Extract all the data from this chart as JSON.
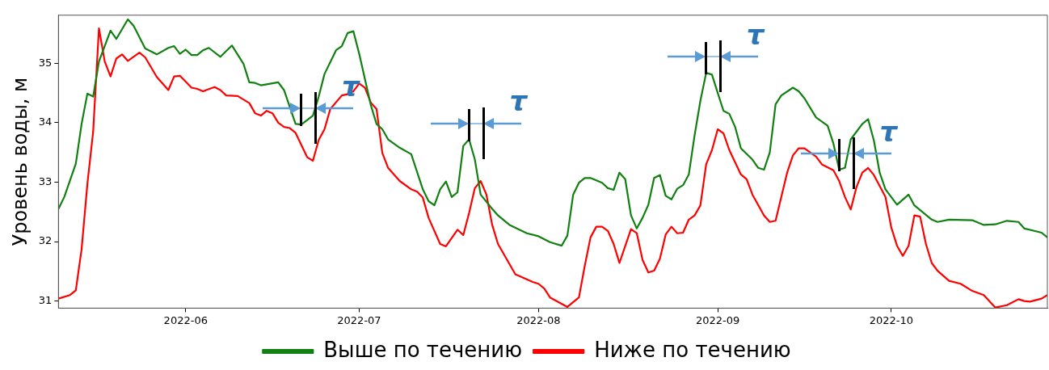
{
  "chart_data": {
    "type": "line",
    "ylabel": "Уровень воды, м",
    "xlim": [
      "2022-05-10",
      "2022-10-28"
    ],
    "xticks": [
      {
        "value": "2022-06-01",
        "label": "2022-06"
      },
      {
        "value": "2022-07-01",
        "label": "2022-07"
      },
      {
        "value": "2022-08-01",
        "label": "2022-08"
      },
      {
        "value": "2022-09-01",
        "label": "2022-09"
      },
      {
        "value": "2022-10-01",
        "label": "2022-10"
      }
    ],
    "ylim": [
      30.88,
      35.81
    ],
    "yticks": [
      31,
      32,
      33,
      34,
      35
    ],
    "legend": "bottom",
    "series": [
      {
        "name": "Выше по течению",
        "color": "#108010",
        "x": [
          "2022-05-10",
          "2022-05-11",
          "2022-05-13",
          "2022-05-14",
          "2022-05-15",
          "2022-05-16",
          "2022-05-17",
          "2022-05-19",
          "2022-05-20",
          "2022-05-22",
          "2022-05-23",
          "2022-05-25",
          "2022-05-27",
          "2022-05-29",
          "2022-05-30",
          "2022-05-31",
          "2022-06-01",
          "2022-06-02",
          "2022-06-03",
          "2022-06-04",
          "2022-06-05",
          "2022-06-07",
          "2022-06-09",
          "2022-06-11",
          "2022-06-12",
          "2022-06-13",
          "2022-06-14",
          "2022-06-17",
          "2022-06-18",
          "2022-06-20",
          "2022-06-21",
          "2022-06-23",
          "2022-06-24",
          "2022-06-25",
          "2022-06-27",
          "2022-06-28",
          "2022-06-29",
          "2022-06-30",
          "2022-07-01",
          "2022-07-03",
          "2022-07-04",
          "2022-07-05",
          "2022-07-06",
          "2022-07-08",
          "2022-07-10",
          "2022-07-12",
          "2022-07-13",
          "2022-07-14",
          "2022-07-15",
          "2022-07-16",
          "2022-07-17",
          "2022-07-18",
          "2022-07-19",
          "2022-07-20",
          "2022-07-21",
          "2022-07-22",
          "2022-07-24",
          "2022-07-25",
          "2022-07-27",
          "2022-07-30",
          "2022-08-01",
          "2022-08-03",
          "2022-08-05",
          "2022-08-06",
          "2022-08-07",
          "2022-08-08",
          "2022-08-09",
          "2022-08-10",
          "2022-08-12",
          "2022-08-13",
          "2022-08-14",
          "2022-08-15",
          "2022-08-16",
          "2022-08-17",
          "2022-08-18",
          "2022-08-19",
          "2022-08-20",
          "2022-08-21",
          "2022-08-22",
          "2022-08-23",
          "2022-08-24",
          "2022-08-25",
          "2022-08-26",
          "2022-08-27",
          "2022-08-28",
          "2022-08-29",
          "2022-08-30",
          "2022-08-31",
          "2022-09-01",
          "2022-09-02",
          "2022-09-03",
          "2022-09-04",
          "2022-09-05",
          "2022-09-07",
          "2022-09-08",
          "2022-09-09",
          "2022-09-10",
          "2022-09-11",
          "2022-09-12",
          "2022-09-14",
          "2022-09-15",
          "2022-09-16",
          "2022-09-18",
          "2022-09-20",
          "2022-09-21",
          "2022-09-22",
          "2022-09-23",
          "2022-09-24",
          "2022-09-26",
          "2022-09-27",
          "2022-09-28",
          "2022-09-29",
          "2022-09-30",
          "2022-10-02",
          "2022-10-04",
          "2022-10-05",
          "2022-10-08",
          "2022-10-09",
          "2022-10-11",
          "2022-10-15",
          "2022-10-17",
          "2022-10-19",
          "2022-10-21",
          "2022-10-23",
          "2022-10-24",
          "2022-10-27",
          "2022-10-28"
        ],
        "values": [
          32.55,
          32.75,
          33.31,
          33.98,
          34.49,
          34.44,
          35.03,
          35.55,
          35.41,
          35.74,
          35.63,
          35.25,
          35.15,
          35.26,
          35.29,
          35.16,
          35.23,
          35.14,
          35.14,
          35.22,
          35.26,
          35.11,
          35.3,
          34.99,
          34.68,
          34.67,
          34.63,
          34.68,
          34.55,
          33.98,
          33.97,
          34.12,
          34.44,
          34.82,
          35.22,
          35.29,
          35.51,
          35.54,
          35.16,
          34.3,
          33.98,
          33.89,
          33.72,
          33.58,
          33.47,
          32.88,
          32.68,
          32.61,
          32.88,
          33.01,
          32.75,
          32.83,
          33.61,
          33.72,
          33.38,
          32.79,
          32.55,
          32.44,
          32.28,
          32.14,
          32.09,
          31.99,
          31.93,
          32.1,
          32.79,
          32.99,
          33.07,
          33.07,
          32.99,
          32.9,
          32.87,
          33.16,
          33.05,
          32.44,
          32.22,
          32.4,
          32.62,
          33.07,
          33.12,
          32.77,
          32.71,
          32.89,
          32.95,
          33.13,
          33.79,
          34.37,
          34.84,
          34.81,
          34.5,
          34.2,
          34.15,
          33.93,
          33.57,
          33.38,
          33.24,
          33.21,
          33.5,
          34.31,
          34.46,
          34.59,
          34.53,
          34.41,
          34.09,
          33.95,
          33.65,
          33.21,
          33.24,
          33.72,
          33.98,
          34.06,
          33.7,
          33.16,
          32.88,
          32.62,
          32.79,
          32.61,
          32.37,
          32.33,
          32.37,
          32.36,
          32.28,
          32.29,
          32.35,
          32.33,
          32.22,
          32.15,
          32.07
        ]
      },
      {
        "name": "Ниже по течению",
        "color": "#ff0000",
        "x": [
          "2022-05-10",
          "2022-05-12",
          "2022-05-13",
          "2022-05-14",
          "2022-05-15",
          "2022-05-16",
          "2022-05-17",
          "2022-05-18",
          "2022-05-19",
          "2022-05-20",
          "2022-05-21",
          "2022-05-22",
          "2022-05-24",
          "2022-05-25",
          "2022-05-27",
          "2022-05-29",
          "2022-05-30",
          "2022-05-31",
          "2022-06-02",
          "2022-06-03",
          "2022-06-04",
          "2022-06-06",
          "2022-06-07",
          "2022-06-08",
          "2022-06-10",
          "2022-06-12",
          "2022-06-13",
          "2022-06-14",
          "2022-06-15",
          "2022-06-16",
          "2022-06-17",
          "2022-06-18",
          "2022-06-19",
          "2022-06-20",
          "2022-06-22",
          "2022-06-23",
          "2022-06-24",
          "2022-06-25",
          "2022-06-26",
          "2022-06-28",
          "2022-06-29",
          "2022-06-30",
          "2022-07-01",
          "2022-07-02",
          "2022-07-03",
          "2022-07-04",
          "2022-07-05",
          "2022-07-06",
          "2022-07-08",
          "2022-07-10",
          "2022-07-11",
          "2022-07-12",
          "2022-07-13",
          "2022-07-15",
          "2022-07-16",
          "2022-07-18",
          "2022-07-19",
          "2022-07-20",
          "2022-07-21",
          "2022-07-22",
          "2022-07-23",
          "2022-07-24",
          "2022-07-25",
          "2022-07-27",
          "2022-07-28",
          "2022-07-31",
          "2022-08-01",
          "2022-08-02",
          "2022-08-03",
          "2022-08-06",
          "2022-08-08",
          "2022-08-09",
          "2022-08-10",
          "2022-08-11",
          "2022-08-12",
          "2022-08-13",
          "2022-08-14",
          "2022-08-15",
          "2022-08-17",
          "2022-08-18",
          "2022-08-19",
          "2022-08-20",
          "2022-08-21",
          "2022-08-22",
          "2022-08-23",
          "2022-08-24",
          "2022-08-25",
          "2022-08-26",
          "2022-08-27",
          "2022-08-28",
          "2022-08-29",
          "2022-08-30",
          "2022-08-31",
          "2022-09-01",
          "2022-09-02",
          "2022-09-03",
          "2022-09-05",
          "2022-09-06",
          "2022-09-07",
          "2022-09-09",
          "2022-09-10",
          "2022-09-11",
          "2022-09-13",
          "2022-09-14",
          "2022-09-15",
          "2022-09-16",
          "2022-09-18",
          "2022-09-19",
          "2022-09-21",
          "2022-09-22",
          "2022-09-23",
          "2022-09-24",
          "2022-09-25",
          "2022-09-26",
          "2022-09-27",
          "2022-09-28",
          "2022-09-30",
          "2022-10-01",
          "2022-10-02",
          "2022-10-03",
          "2022-10-04",
          "2022-10-05",
          "2022-10-06",
          "2022-10-07",
          "2022-10-08",
          "2022-10-09",
          "2022-10-11",
          "2022-10-13",
          "2022-10-15",
          "2022-10-17",
          "2022-10-19",
          "2022-10-21",
          "2022-10-23",
          "2022-10-24",
          "2022-10-25",
          "2022-10-27",
          "2022-10-28"
        ],
        "values": [
          31.04,
          31.1,
          31.18,
          31.87,
          32.97,
          33.85,
          35.59,
          35.03,
          34.78,
          35.08,
          35.15,
          35.04,
          35.18,
          35.1,
          34.77,
          34.55,
          34.78,
          34.79,
          34.59,
          34.57,
          34.53,
          34.6,
          34.55,
          34.46,
          34.45,
          34.33,
          34.16,
          34.12,
          34.2,
          34.16,
          34.0,
          33.93,
          33.91,
          33.83,
          33.42,
          33.36,
          33.71,
          33.89,
          34.23,
          34.46,
          34.48,
          34.53,
          34.66,
          34.59,
          34.34,
          34.23,
          33.49,
          33.24,
          33.02,
          32.88,
          32.84,
          32.74,
          32.4,
          31.96,
          31.92,
          32.2,
          32.11,
          32.48,
          32.9,
          33.02,
          32.79,
          32.28,
          31.96,
          31.62,
          31.45,
          31.32,
          31.29,
          31.21,
          31.06,
          30.9,
          31.06,
          31.59,
          32.07,
          32.25,
          32.25,
          32.18,
          31.96,
          31.64,
          32.21,
          32.14,
          31.69,
          31.48,
          31.51,
          31.71,
          32.12,
          32.25,
          32.14,
          32.15,
          32.37,
          32.44,
          32.61,
          33.3,
          33.54,
          33.89,
          33.82,
          33.54,
          33.13,
          33.05,
          32.79,
          32.44,
          32.33,
          32.35,
          33.16,
          33.45,
          33.57,
          33.57,
          33.43,
          33.3,
          33.2,
          33.02,
          32.75,
          32.54,
          32.92,
          33.16,
          33.24,
          33.12,
          32.75,
          32.24,
          31.93,
          31.76,
          31.93,
          32.44,
          32.42,
          31.96,
          31.64,
          31.51,
          31.34,
          31.29,
          31.17,
          31.1,
          30.89,
          30.93,
          31.03,
          31.0,
          30.99,
          31.04,
          31.1
        ]
      }
    ],
    "annotations": [
      {
        "text": "τ",
        "x": "2022-06-21",
        "y": 33.97
      },
      {
        "text": "τ",
        "x": "2022-07-20",
        "y": 33.72
      },
      {
        "text": "τ",
        "x": "2022-08-30",
        "y": 34.84
      },
      {
        "text": "τ",
        "x": "2022-09-22",
        "y": 33.21
      }
    ]
  }
}
